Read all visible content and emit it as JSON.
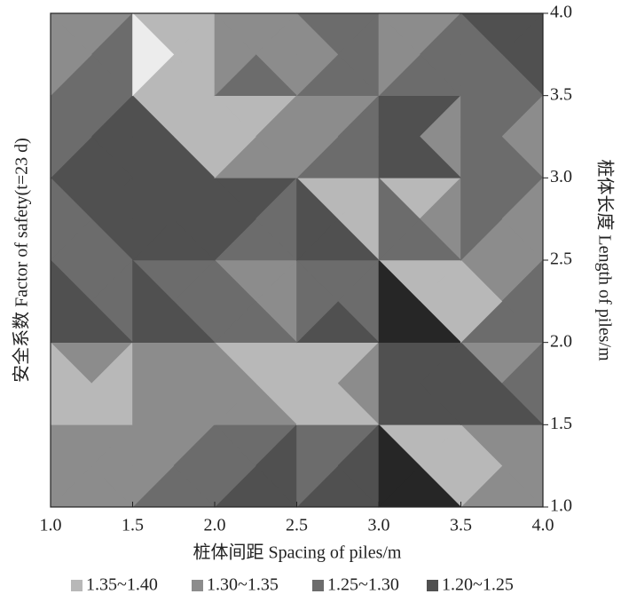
{
  "chart_data": {
    "type": "triangle-contour",
    "xlabel": "桩体间距 Spacing of piles/m",
    "ylabel": "安全系数 Factor of safety(t=23 d)",
    "y2label": "桩体长度 Length of piles/m",
    "xlim": [
      1.0,
      4.0
    ],
    "ylim": [
      1.0,
      4.0
    ],
    "xticks": [
      {
        "value": 1.0,
        "label": "1.0"
      },
      {
        "value": 1.5,
        "label": "1.5"
      },
      {
        "value": 2.0,
        "label": "2.0"
      },
      {
        "value": 2.5,
        "label": "2.5"
      },
      {
        "value": 3.0,
        "label": "3.0"
      },
      {
        "value": 3.5,
        "label": "3.5"
      },
      {
        "value": 4.0,
        "label": "4.0"
      }
    ],
    "yticks": [
      {
        "value": 1.0,
        "label": "1.0"
      },
      {
        "value": 1.5,
        "label": "1.5"
      },
      {
        "value": 2.0,
        "label": "2.0"
      },
      {
        "value": 2.5,
        "label": "2.5"
      },
      {
        "value": 3.0,
        "label": "3.0"
      },
      {
        "value": 3.5,
        "label": "3.5"
      },
      {
        "value": 4.0,
        "label": "4.0"
      }
    ],
    "legend": [
      {
        "name": "1.35~1.40",
        "color": "#b8b8b8",
        "range": [
          1.35,
          1.4
        ]
      },
      {
        "name": "1.30~1.35",
        "color": "#8c8c8c",
        "range": [
          1.3,
          1.35
        ]
      },
      {
        "name": "1.25~1.30",
        "color": "#6c6c6c",
        "range": [
          1.25,
          1.3
        ]
      },
      {
        "name": "1.20~1.25",
        "color": "#505050",
        "range": [
          1.2,
          1.25
        ]
      }
    ],
    "above_color": "#ececec",
    "below_color": "#262626",
    "values": [
      [
        [
          1.32,
          1.32,
          1.32,
          1.32
        ],
        [
          1.32,
          1.27,
          1.27,
          1.32
        ],
        [
          1.27,
          1.22,
          1.22,
          1.27
        ],
        [
          1.27,
          1.22,
          1.22,
          1.27
        ],
        [
          1.37,
          1.37,
          1.17,
          1.17
        ],
        [
          1.32,
          1.32,
          1.32,
          1.37
        ]
      ],
      [
        [
          1.32,
          1.37,
          1.37,
          1.37
        ],
        [
          1.32,
          1.32,
          1.32,
          1.32
        ],
        [
          1.37,
          1.37,
          1.32,
          1.32
        ],
        [
          1.37,
          1.32,
          1.37,
          1.37
        ],
        [
          1.22,
          1.22,
          1.22,
          1.22
        ],
        [
          1.32,
          1.27,
          1.22,
          1.22
        ]
      ],
      [
        [
          1.27,
          1.27,
          1.22,
          1.22
        ],
        [
          1.27,
          1.27,
          1.22,
          1.22
        ],
        [
          1.32,
          1.32,
          1.27,
          1.27
        ],
        [
          1.27,
          1.27,
          1.22,
          1.27
        ],
        [
          1.37,
          1.37,
          1.17,
          1.17
        ],
        [
          1.32,
          1.27,
          1.27,
          1.37
        ]
      ],
      [
        [
          1.22,
          1.22,
          1.27,
          1.27
        ],
        [
          1.22,
          1.22,
          1.22,
          1.22
        ],
        [
          1.22,
          1.27,
          1.27,
          1.22
        ],
        [
          1.37,
          1.37,
          1.22,
          1.22
        ],
        [
          1.37,
          1.32,
          1.27,
          1.27
        ],
        [
          1.27,
          1.32,
          1.32,
          1.27
        ]
      ],
      [
        [
          1.27,
          1.22,
          1.22,
          1.27
        ],
        [
          1.37,
          1.37,
          1.22,
          1.22
        ],
        [
          1.37,
          1.32,
          1.32,
          1.37
        ],
        [
          1.32,
          1.27,
          1.27,
          1.32
        ],
        [
          1.22,
          1.32,
          1.22,
          1.22
        ],
        [
          1.27,
          1.32,
          1.27,
          1.27
        ]
      ],
      [
        [
          1.32,
          1.27,
          1.27,
          1.32
        ],
        [
          1.37,
          1.37,
          1.37,
          1.42
        ],
        [
          1.32,
          1.32,
          1.27,
          1.32
        ],
        [
          1.27,
          1.27,
          1.27,
          1.32
        ],
        [
          1.32,
          1.27,
          1.27,
          1.32
        ],
        [
          1.22,
          1.22,
          1.27,
          1.27
        ]
      ]
    ]
  }
}
